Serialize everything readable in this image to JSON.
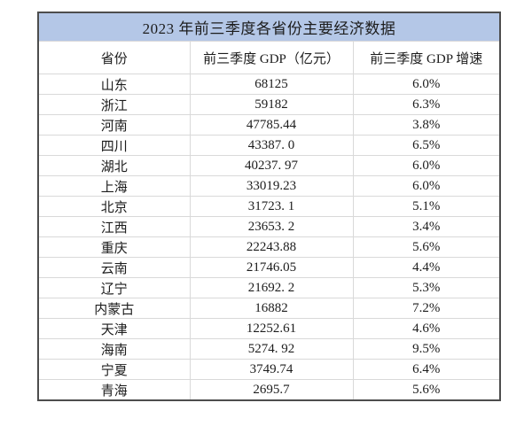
{
  "table": {
    "title": "2023 年前三季度各省份主要经济数据",
    "columns": [
      "省份",
      "前三季度 GDP（亿元）",
      "前三季度 GDP 增速"
    ],
    "rows": [
      [
        "山东",
        "68125",
        "6.0%"
      ],
      [
        "浙江",
        "59182",
        "6.3%"
      ],
      [
        "河南",
        "47785.44",
        "3.8%"
      ],
      [
        "四川",
        "43387. 0",
        "6.5%"
      ],
      [
        "湖北",
        "40237. 97",
        "6.0%"
      ],
      [
        "上海",
        "33019.23",
        "6.0%"
      ],
      [
        "北京",
        "31723. 1",
        "5.1%"
      ],
      [
        "江西",
        "23653. 2",
        "3.4%"
      ],
      [
        "重庆",
        "22243.88",
        "5.6%"
      ],
      [
        "云南",
        "21746.05",
        "4.4%"
      ],
      [
        "辽宁",
        "21692. 2",
        "5.3%"
      ],
      [
        "内蒙古",
        "16882",
        "7.2%"
      ],
      [
        "天津",
        "12252.61",
        "4.6%"
      ],
      [
        "海南",
        "5274. 92",
        "9.5%"
      ],
      [
        "宁夏",
        "3749.74",
        "6.4%"
      ],
      [
        "青海",
        "2695.7",
        "5.6%"
      ]
    ],
    "colors": {
      "title_background": "#b4c7e7",
      "outer_border": "#4d4d4d",
      "inner_border": "#d9d9d9",
      "text": "#1c1c1c",
      "page_background": "#ffffff"
    }
  }
}
